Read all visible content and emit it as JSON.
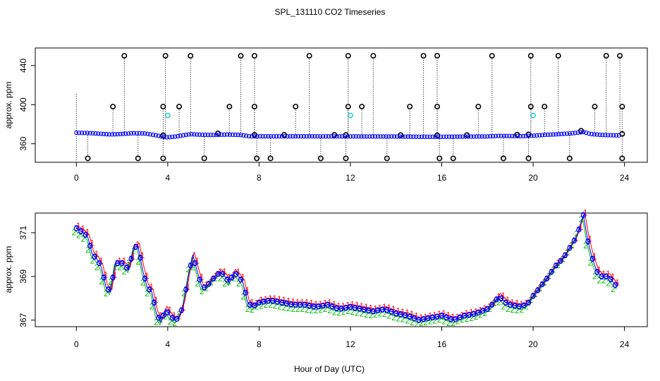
{
  "title": "SPL_131110  CO2 Timeseries",
  "xlabel": "Hour of Day (UTC)",
  "colors": {
    "raw": "#000000",
    "flagged": "#00cccc",
    "mean": "#0000ff",
    "series1": "#ff0000",
    "series2": "#00bb00",
    "series3": "#0000ff"
  },
  "chart_data": [
    {
      "type": "scatter",
      "panel": "top",
      "title": "",
      "xlabel": "",
      "ylabel": "approx. ppm",
      "xlim": [
        -1.8,
        25
      ],
      "ylim": [
        341,
        458
      ],
      "xticks": [
        0,
        4,
        8,
        12,
        16,
        20,
        24
      ],
      "yticks": [
        360,
        400,
        440
      ],
      "high_spikes": [
        2.1,
        3.9,
        5.0,
        7.2,
        7.8,
        10.2,
        11.9,
        13.0,
        15.2,
        15.8,
        18.2,
        19.9,
        21.1,
        23.2,
        23.8
      ],
      "mid_spikes": [
        1.6,
        3.8,
        4.5,
        6.7,
        7.8,
        9.6,
        11.9,
        12.5,
        14.6,
        15.8,
        17.6,
        19.9,
        20.5,
        22.7,
        23.9
      ],
      "low_spikes": [
        0.5,
        2.7,
        3.8,
        5.6,
        7.9,
        8.5,
        10.7,
        11.8,
        13.6,
        15.9,
        16.5,
        18.7,
        19.8,
        21.6,
        23.9
      ],
      "near_baseline": [
        3.8,
        6.2,
        7.8,
        9.1,
        11.3,
        11.8,
        14.2,
        15.8,
        17.1,
        19.3,
        19.8,
        22.1,
        23.9
      ],
      "flagged": [
        [
          4.0,
          389
        ],
        [
          12.0,
          389
        ],
        [
          20.0,
          389
        ]
      ],
      "baseline": [
        [
          0.0,
          371.2
        ],
        [
          0.5,
          371.0
        ],
        [
          1.0,
          370.3
        ],
        [
          1.5,
          369.5
        ],
        [
          2.0,
          370.0
        ],
        [
          2.5,
          370.8
        ],
        [
          3.0,
          370.5
        ],
        [
          3.5,
          368.6
        ],
        [
          3.9,
          366.5
        ],
        [
          4.3,
          367.2
        ],
        [
          5.0,
          369.8
        ],
        [
          5.5,
          369.2
        ],
        [
          6.0,
          369.0
        ],
        [
          6.6,
          369.4
        ],
        [
          7.2,
          369.0
        ],
        [
          7.6,
          367.6
        ],
        [
          8.0,
          367.6
        ],
        [
          10.0,
          367.6
        ],
        [
          12.0,
          367.5
        ],
        [
          14.0,
          367.4
        ],
        [
          15.0,
          367.1
        ],
        [
          16.0,
          367.1
        ],
        [
          18.0,
          367.5
        ],
        [
          18.5,
          368.0
        ],
        [
          19.5,
          367.7
        ],
        [
          20.0,
          368.2
        ],
        [
          20.5,
          369.1
        ],
        [
          21.0,
          369.6
        ],
        [
          21.7,
          370.7
        ],
        [
          22.2,
          372.0
        ],
        [
          22.5,
          370.0
        ],
        [
          23.0,
          369.0
        ],
        [
          23.8,
          368.5
        ]
      ]
    },
    {
      "type": "line",
      "panel": "bottom",
      "title": "",
      "xlabel": "Hour of Day (UTC)",
      "ylabel": "approx. ppm",
      "xlim": [
        -1.8,
        25
      ],
      "ylim": [
        366.7,
        371.9
      ],
      "xticks": [
        0,
        4,
        8,
        12,
        16,
        20,
        24
      ],
      "yticks": [
        367,
        369,
        371
      ],
      "series": [
        {
          "name": "1",
          "marker": "1",
          "offset": 0.2
        },
        {
          "name": "2",
          "marker": "2",
          "offset": -0.2
        },
        {
          "name": "3",
          "marker": "3",
          "offset": 0.0
        }
      ],
      "x": [
        0.0,
        0.3,
        0.5,
        0.7,
        0.9,
        1.1,
        1.3,
        1.5,
        1.7,
        2.0,
        2.3,
        2.5,
        2.7,
        2.9,
        3.1,
        3.3,
        3.5,
        3.7,
        3.9,
        4.1,
        4.3,
        4.5,
        4.7,
        4.9,
        5.1,
        5.3,
        5.5,
        5.7,
        5.9,
        6.1,
        6.3,
        6.5,
        6.7,
        6.9,
        7.1,
        7.3,
        7.5,
        7.7,
        8.0,
        8.5,
        9.0,
        9.5,
        10.0,
        10.5,
        11.0,
        11.5,
        12.0,
        12.5,
        13.0,
        13.5,
        14.0,
        14.5,
        15.0,
        15.5,
        16.0,
        16.5,
        17.0,
        17.5,
        18.0,
        18.3,
        18.5,
        18.8,
        19.0,
        19.5,
        19.8,
        20.0,
        20.3,
        20.6,
        21.0,
        21.3,
        21.6,
        21.9,
        22.2,
        22.4,
        22.6,
        22.8,
        23.0,
        23.3,
        23.6,
        23.8
      ],
      "values": [
        371.2,
        371.0,
        370.8,
        370.0,
        369.8,
        369.4,
        368.5,
        368.3,
        369.6,
        369.6,
        369.3,
        370.3,
        370.4,
        369.3,
        368.5,
        368.3,
        367.3,
        366.9,
        367.5,
        367.2,
        367.0,
        367.1,
        367.8,
        369.0,
        370.0,
        369.2,
        368.5,
        368.5,
        368.8,
        369.0,
        369.2,
        369.0,
        368.7,
        369.2,
        369.0,
        368.7,
        367.8,
        367.6,
        367.8,
        367.9,
        367.8,
        367.7,
        367.7,
        367.6,
        367.7,
        367.5,
        367.6,
        367.5,
        367.4,
        367.5,
        367.3,
        367.2,
        367.0,
        367.1,
        367.2,
        367.0,
        367.2,
        367.3,
        367.5,
        367.8,
        368.1,
        367.8,
        367.7,
        367.6,
        367.8,
        368.1,
        368.5,
        368.9,
        369.5,
        369.8,
        370.3,
        370.8,
        371.8,
        370.6,
        369.8,
        369.2,
        369.0,
        369.0,
        368.6,
        368.5
      ]
    }
  ]
}
